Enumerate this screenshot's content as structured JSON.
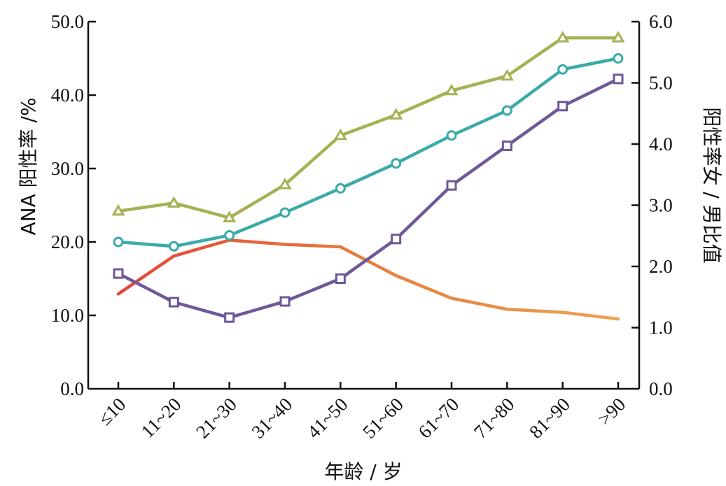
{
  "chart_data": {
    "type": "line",
    "title": "",
    "categories": [
      "≤10",
      "11~20",
      "21~30",
      "31~40",
      "41~50",
      "51~60",
      "61~70",
      "71~80",
      "81~90",
      ">90"
    ],
    "xlabel": "年龄 / 岁",
    "ylabel": "ANA 阳性率 /%",
    "y2label": "阳性率女 / 男比值",
    "ylim": [
      0,
      50
    ],
    "y2lim": [
      0,
      6
    ],
    "yticks": [
      "0.0",
      "10.0",
      "20.0",
      "30.0",
      "40.0",
      "50.0"
    ],
    "y2ticks": [
      "0.0",
      "1.0",
      "2.0",
      "3.0",
      "4.0",
      "5.0",
      "6.0"
    ],
    "grid": false,
    "legend": "none",
    "series": [
      {
        "values": [
          24.2,
          25.3,
          23.3,
          27.8,
          34.5,
          37.3,
          40.6,
          42.6,
          47.8,
          47.8
        ],
        "axis": "left",
        "marker": "triangle",
        "color": "#a6b153"
      },
      {
        "values": [
          20.0,
          19.4,
          20.9,
          24.0,
          27.3,
          30.7,
          34.5,
          37.9,
          43.5,
          45.0
        ],
        "axis": "left",
        "marker": "circle",
        "color": "#3aaba8"
      },
      {
        "values": [
          15.7,
          11.8,
          9.7,
          11.9,
          15.0,
          20.4,
          27.7,
          33.1,
          38.5,
          42.2
        ],
        "axis": "left",
        "marker": "square",
        "color": "#6e5898"
      },
      {
        "values": [
          1.55,
          2.17,
          2.43,
          2.36,
          2.32,
          1.85,
          1.48,
          1.3,
          1.25,
          1.14
        ],
        "axis": "right",
        "marker": "none",
        "colors": [
          "#e4433a",
          "#e7793a",
          "#eaa257"
        ]
      }
    ]
  }
}
